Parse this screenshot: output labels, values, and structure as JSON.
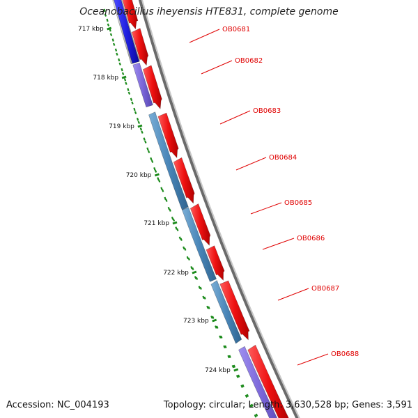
{
  "title": "Oceanobacillus iheyensis HTE831, complete genome",
  "accession": "Accession: NC_004193",
  "summary": "Topology: circular; Length: 3,630,528 bp; Genes: 3,591",
  "colors": {
    "forward_cds": "#ee1111",
    "gene_blue": "#2020e0",
    "gene_purple": "#7a66d8",
    "gene_steel": "#4a86b8",
    "gene_gray": "#b8b8b8",
    "backbone": "#888888",
    "tick": "#1a8a1a",
    "label": "#e00000"
  },
  "kbp_ticks": [
    "717 kbp",
    "718 kbp",
    "719 kbp",
    "720 kbp",
    "721 kbp",
    "722 kbp",
    "723 kbp",
    "724 kbp"
  ],
  "genes": [
    {
      "id": "OB0681",
      "color": "blue"
    },
    {
      "id": "OB0682",
      "color": "purple"
    },
    {
      "id": "OB0683",
      "color": "steel"
    },
    {
      "id": "OB0684",
      "color": "steel"
    },
    {
      "id": "OB0685",
      "color": "steel"
    },
    {
      "id": "OB0686",
      "color": "steel"
    },
    {
      "id": "OB0687",
      "color": "steel"
    },
    {
      "id": "OB0688",
      "color": "purple"
    }
  ]
}
